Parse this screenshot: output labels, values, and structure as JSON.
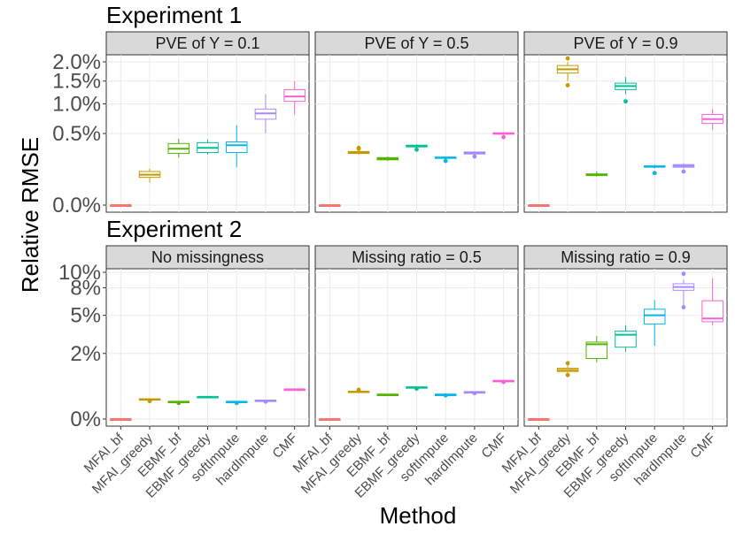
{
  "chart_data": [
    {
      "type": "boxplot",
      "title": "Experiment 1",
      "ylabel": "Relative RMSE",
      "xlabel": "Method",
      "categories": [
        "MFAI_bf",
        "MFAI_greedy",
        "EBMF_bf",
        "EBMF_greedy",
        "softImpute",
        "hardImpute",
        "CMF"
      ],
      "y_ticks": [
        {
          "value": 0.0,
          "label": "0.0%"
        },
        {
          "value": 0.5,
          "label": "0.5%"
        },
        {
          "value": 1.0,
          "label": "1.0%"
        },
        {
          "value": 1.5,
          "label": "1.5%"
        },
        {
          "value": 2.0,
          "label": "2.0%"
        }
      ],
      "panels": [
        {
          "label": "PVE of Y = 0.1",
          "boxes": [
            {
              "min": 0.0,
              "q1": 0.0,
              "median": 0.0,
              "q3": 0.0,
              "max": 0.0,
              "outliers": []
            },
            {
              "min": 0.05,
              "q1": 0.075,
              "median": 0.09,
              "q3": 0.11,
              "max": 0.13,
              "outliers": []
            },
            {
              "min": 0.22,
              "q1": 0.26,
              "median": 0.31,
              "q3": 0.37,
              "max": 0.43,
              "outliers": []
            },
            {
              "min": 0.25,
              "q1": 0.27,
              "median": 0.32,
              "q3": 0.38,
              "max": 0.42,
              "outliers": []
            },
            {
              "min": 0.14,
              "q1": 0.27,
              "median": 0.35,
              "q3": 0.39,
              "max": 0.62,
              "outliers": []
            },
            {
              "min": 0.5,
              "q1": 0.72,
              "median": 0.82,
              "q3": 0.9,
              "max": 1.2,
              "outliers": []
            },
            {
              "min": 0.8,
              "q1": 1.05,
              "median": 1.15,
              "q3": 1.3,
              "max": 1.5,
              "outliers": []
            }
          ]
        },
        {
          "label": "PVE of Y = 0.5",
          "boxes": [
            {
              "min": 0.0,
              "q1": 0.0,
              "median": 0.0,
              "q3": 0.0,
              "max": 0.0,
              "outliers": []
            },
            {
              "min": 0.25,
              "q1": 0.26,
              "median": 0.27,
              "q3": 0.28,
              "max": 0.3,
              "outliers": [
                0.31,
                0.32
              ]
            },
            {
              "min": 0.19,
              "q1": 0.2,
              "median": 0.21,
              "q3": 0.22,
              "max": 0.23,
              "outliers": []
            },
            {
              "min": 0.31,
              "q1": 0.33,
              "median": 0.34,
              "q3": 0.35,
              "max": 0.36,
              "outliers": [
                0.3
              ]
            },
            {
              "min": 0.2,
              "q1": 0.215,
              "median": 0.22,
              "q3": 0.225,
              "max": 0.23,
              "outliers": [
                0.19
              ]
            },
            {
              "min": 0.24,
              "q1": 0.255,
              "median": 0.265,
              "q3": 0.275,
              "max": 0.28,
              "outliers": [
                0.23
              ]
            },
            {
              "min": 0.47,
              "q1": 0.49,
              "median": 0.5,
              "q3": 0.51,
              "max": 0.52,
              "outliers": [
                0.45
              ]
            }
          ]
        },
        {
          "label": "PVE of Y = 0.9",
          "boxes": [
            {
              "min": 0.0,
              "q1": 0.0,
              "median": 0.0,
              "q3": 0.0,
              "max": 0.0,
              "outliers": []
            },
            {
              "min": 1.5,
              "q1": 1.7,
              "median": 1.8,
              "q3": 1.9,
              "max": 2.0,
              "outliers": [
                1.4,
                2.1
              ]
            },
            {
              "min": 0.08,
              "q1": 0.085,
              "median": 0.09,
              "q3": 0.095,
              "max": 0.11,
              "outliers": []
            },
            {
              "min": 1.2,
              "q1": 1.3,
              "median": 1.38,
              "q3": 1.45,
              "max": 1.6,
              "outliers": [
                1.05
              ]
            },
            {
              "min": 0.13,
              "q1": 0.14,
              "median": 0.145,
              "q3": 0.15,
              "max": 0.16,
              "outliers": [
                0.1
              ]
            },
            {
              "min": 0.13,
              "q1": 0.14,
              "median": 0.15,
              "q3": 0.16,
              "max": 0.17,
              "outliers": [
                0.11
              ]
            },
            {
              "min": 0.55,
              "q1": 0.65,
              "median": 0.72,
              "q3": 0.8,
              "max": 0.9,
              "outliers": []
            }
          ]
        }
      ]
    },
    {
      "type": "boxplot",
      "title": "Experiment 2",
      "ylabel": "Relative RMSE",
      "xlabel": "Method",
      "categories": [
        "MFAI_bf",
        "MFAI_greedy",
        "EBMF_bf",
        "EBMF_greedy",
        "softImpute",
        "hardImpute",
        "CMF"
      ],
      "y_ticks": [
        {
          "value": 0,
          "label": "0%"
        },
        {
          "value": 2,
          "label": "2%"
        },
        {
          "value": 5,
          "label": "5%"
        },
        {
          "value": 8,
          "label": "8%"
        },
        {
          "value": 10,
          "label": "10%"
        }
      ],
      "panels": [
        {
          "label": "No missingness",
          "boxes": [
            {
              "min": 0.0,
              "q1": 0.0,
              "median": 0.0,
              "q3": 0.0,
              "max": 0.0,
              "outliers": []
            },
            {
              "min": 0.16,
              "q1": 0.17,
              "median": 0.18,
              "q3": 0.19,
              "max": 0.2,
              "outliers": [
                0.15
              ]
            },
            {
              "min": 0.13,
              "q1": 0.135,
              "median": 0.14,
              "q3": 0.145,
              "max": 0.15,
              "outliers": [
                0.12
              ]
            },
            {
              "min": 0.22,
              "q1": 0.225,
              "median": 0.23,
              "q3": 0.235,
              "max": 0.24,
              "outliers": []
            },
            {
              "min": 0.13,
              "q1": 0.135,
              "median": 0.14,
              "q3": 0.145,
              "max": 0.15,
              "outliers": [
                0.12
              ]
            },
            {
              "min": 0.15,
              "q1": 0.155,
              "median": 0.16,
              "q3": 0.165,
              "max": 0.17,
              "outliers": [
                0.14
              ]
            },
            {
              "min": 0.4,
              "q1": 0.405,
              "median": 0.41,
              "q3": 0.415,
              "max": 0.42,
              "outliers": []
            }
          ]
        },
        {
          "label": "Missing ratio = 0.5",
          "boxes": [
            {
              "min": 0.0,
              "q1": 0.0,
              "median": 0.0,
              "q3": 0.0,
              "max": 0.0,
              "outliers": []
            },
            {
              "min": 0.33,
              "q1": 0.34,
              "median": 0.35,
              "q3": 0.36,
              "max": 0.37,
              "outliers": [
                0.4
              ]
            },
            {
              "min": 0.27,
              "q1": 0.275,
              "median": 0.28,
              "q3": 0.285,
              "max": 0.29,
              "outliers": []
            },
            {
              "min": 0.45,
              "q1": 0.46,
              "median": 0.47,
              "q3": 0.48,
              "max": 0.49,
              "outliers": [
                0.43
              ]
            },
            {
              "min": 0.27,
              "q1": 0.275,
              "median": 0.28,
              "q3": 0.285,
              "max": 0.29,
              "outliers": [
                0.26
              ]
            },
            {
              "min": 0.33,
              "q1": 0.335,
              "median": 0.34,
              "q3": 0.345,
              "max": 0.35,
              "outliers": [
                0.31
              ]
            },
            {
              "min": 0.66,
              "q1": 0.67,
              "median": 0.68,
              "q3": 0.69,
              "max": 0.7,
              "outliers": [
                0.64
              ]
            }
          ]
        },
        {
          "label": "Missing ratio = 0.9",
          "boxes": [
            {
              "min": 0.0,
              "q1": 0.0,
              "median": 0.0,
              "q3": 0.0,
              "max": 0.0,
              "outliers": []
            },
            {
              "min": 1.0,
              "q1": 1.05,
              "median": 1.12,
              "q3": 1.2,
              "max": 1.35,
              "outliers": [
                0.9,
                1.45
              ]
            },
            {
              "min": 1.5,
              "q1": 1.7,
              "median": 2.6,
              "q3": 2.75,
              "max": 3.2,
              "outliers": []
            },
            {
              "min": 2.1,
              "q1": 2.4,
              "median": 3.3,
              "q3": 3.6,
              "max": 4.1,
              "outliers": []
            },
            {
              "min": 2.5,
              "q1": 4.2,
              "median": 5.0,
              "q3": 5.6,
              "max": 6.6,
              "outliers": []
            },
            {
              "min": 6.0,
              "q1": 7.7,
              "median": 8.1,
              "q3": 8.5,
              "max": 9.0,
              "outliers": [
                5.8,
                9.8
              ]
            },
            {
              "min": 4.1,
              "q1": 4.4,
              "median": 4.7,
              "q3": 6.5,
              "max": 9.2,
              "outliers": []
            }
          ]
        }
      ]
    }
  ],
  "colors": [
    "#f8766d",
    "#c49a00",
    "#53b400",
    "#00c094",
    "#00b6eb",
    "#a58aff",
    "#fb61d7"
  ],
  "axis_titles": {
    "y": "Relative RMSE",
    "x": "Method"
  }
}
